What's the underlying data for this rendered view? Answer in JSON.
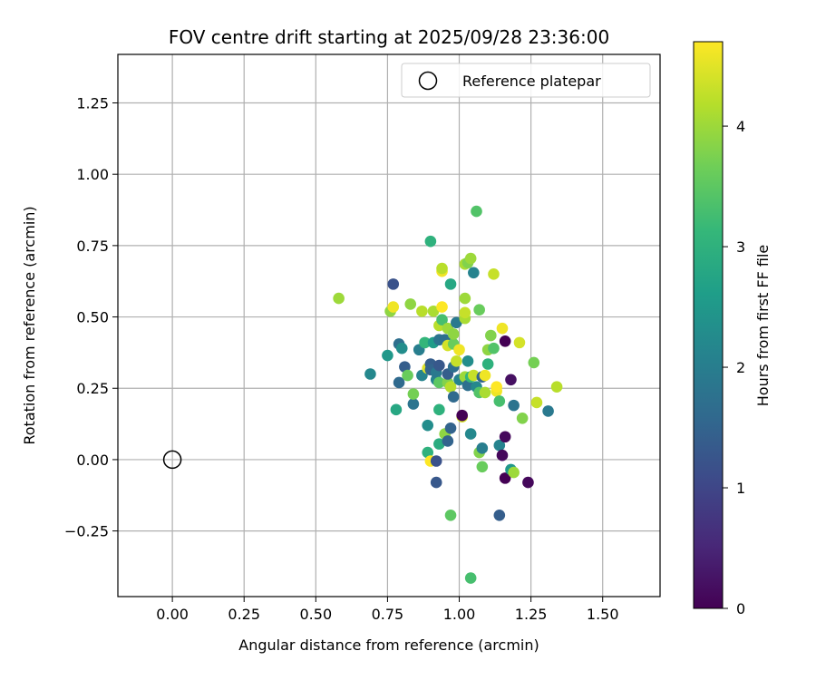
{
  "chart_data": {
    "type": "scatter",
    "title": "FOV centre drift starting at 2025/09/28 23:36:00",
    "xlabel": "Angular distance from reference (arcmin)",
    "ylabel": "Rotation from reference (arcmin)",
    "xlim": [
      -0.19,
      1.7
    ],
    "ylim": [
      -0.48,
      1.42
    ],
    "x_ticks": [
      0.0,
      0.25,
      0.5,
      0.75,
      1.0,
      1.25,
      1.5
    ],
    "x_tick_labels": [
      "0.00",
      "0.25",
      "0.50",
      "0.75",
      "1.00",
      "1.25",
      "1.50"
    ],
    "y_ticks": [
      -0.25,
      0.0,
      0.25,
      0.5,
      0.75,
      1.0,
      1.25
    ],
    "y_tick_labels": [
      "−0.25",
      "0.00",
      "0.25",
      "0.50",
      "0.75",
      "1.00",
      "1.25"
    ],
    "grid": true,
    "legend": {
      "position": "top-right",
      "entries": [
        "Reference platepar"
      ]
    },
    "reference_point": {
      "x": 0.0,
      "y": 0.0,
      "label": "Reference platepar"
    },
    "colorbar": {
      "label": "Hours from first FF file",
      "min": 0,
      "max": 4.7,
      "ticks": [
        0,
        1,
        2,
        3,
        4
      ],
      "tick_labels": [
        "0",
        "1",
        "2",
        "3",
        "4"
      ],
      "colormap": "viridis",
      "colors": [
        "#440154",
        "#482878",
        "#3e4989",
        "#31688e",
        "#26828e",
        "#1f9e89",
        "#35b779",
        "#6ece58",
        "#b5de2b",
        "#fde725"
      ]
    },
    "points": [
      {
        "x": 0.58,
        "y": 0.565,
        "h": 4.0
      },
      {
        "x": 0.69,
        "y": 0.3,
        "h": 2.2
      },
      {
        "x": 0.75,
        "y": 0.365,
        "h": 2.5
      },
      {
        "x": 0.76,
        "y": 0.52,
        "h": 3.9
      },
      {
        "x": 0.77,
        "y": 0.535,
        "h": 4.6
      },
      {
        "x": 0.77,
        "y": 0.615,
        "h": 1.2
      },
      {
        "x": 0.78,
        "y": 0.175,
        "h": 2.8
      },
      {
        "x": 0.79,
        "y": 0.405,
        "h": 1.7
      },
      {
        "x": 0.79,
        "y": 0.27,
        "h": 1.6
      },
      {
        "x": 0.8,
        "y": 0.39,
        "h": 2.3
      },
      {
        "x": 0.81,
        "y": 0.325,
        "h": 1.4
      },
      {
        "x": 0.82,
        "y": 0.295,
        "h": 3.6
      },
      {
        "x": 0.83,
        "y": 0.545,
        "h": 3.9
      },
      {
        "x": 0.84,
        "y": 0.195,
        "h": 1.8
      },
      {
        "x": 0.84,
        "y": 0.23,
        "h": 3.7
      },
      {
        "x": 0.86,
        "y": 0.385,
        "h": 2.0
      },
      {
        "x": 0.87,
        "y": 0.295,
        "h": 2.1
      },
      {
        "x": 0.87,
        "y": 0.52,
        "h": 4.2
      },
      {
        "x": 0.88,
        "y": 0.41,
        "h": 3.1
      },
      {
        "x": 0.89,
        "y": 0.12,
        "h": 2.3
      },
      {
        "x": 0.89,
        "y": 0.025,
        "h": 3.0
      },
      {
        "x": 0.89,
        "y": 0.32,
        "h": 4.5
      },
      {
        "x": 0.9,
        "y": 0.335,
        "h": 1.4
      },
      {
        "x": 0.9,
        "y": 0.315,
        "h": 1.5
      },
      {
        "x": 0.9,
        "y": 0.765,
        "h": 3.0
      },
      {
        "x": 0.9,
        "y": -0.005,
        "h": 4.7
      },
      {
        "x": 0.91,
        "y": 0.41,
        "h": 2.6
      },
      {
        "x": 0.91,
        "y": 0.52,
        "h": 4.1
      },
      {
        "x": 0.92,
        "y": 0.28,
        "h": 2.1
      },
      {
        "x": 0.92,
        "y": 0.305,
        "h": 1.9
      },
      {
        "x": 0.92,
        "y": -0.005,
        "h": 1.2
      },
      {
        "x": 0.92,
        "y": -0.08,
        "h": 1.3
      },
      {
        "x": 0.93,
        "y": 0.47,
        "h": 4.2
      },
      {
        "x": 0.93,
        "y": 0.33,
        "h": 1.3
      },
      {
        "x": 0.93,
        "y": 0.42,
        "h": 1.8
      },
      {
        "x": 0.93,
        "y": 0.27,
        "h": 3.5
      },
      {
        "x": 0.93,
        "y": 0.175,
        "h": 3.0
      },
      {
        "x": 0.93,
        "y": 0.055,
        "h": 2.9
      },
      {
        "x": 0.94,
        "y": 0.66,
        "h": 4.6
      },
      {
        "x": 0.94,
        "y": 0.535,
        "h": 4.7
      },
      {
        "x": 0.94,
        "y": 0.67,
        "h": 4.2
      },
      {
        "x": 0.94,
        "y": 0.49,
        "h": 3.3
      },
      {
        "x": 0.95,
        "y": 0.42,
        "h": 1.7
      },
      {
        "x": 0.95,
        "y": 0.09,
        "h": 3.9
      },
      {
        "x": 0.96,
        "y": 0.065,
        "h": 1.5
      },
      {
        "x": 0.96,
        "y": 0.27,
        "h": 3.8
      },
      {
        "x": 0.96,
        "y": 0.46,
        "h": 4.0
      },
      {
        "x": 0.96,
        "y": 0.4,
        "h": 4.4
      },
      {
        "x": 0.96,
        "y": 0.3,
        "h": 1.4
      },
      {
        "x": 0.97,
        "y": 0.615,
        "h": 2.8
      },
      {
        "x": 0.97,
        "y": 0.255,
        "h": 4.2
      },
      {
        "x": 0.97,
        "y": -0.195,
        "h": 3.5
      },
      {
        "x": 0.97,
        "y": 0.11,
        "h": 1.5
      },
      {
        "x": 0.98,
        "y": 0.405,
        "h": 3.6
      },
      {
        "x": 0.98,
        "y": 0.44,
        "h": 3.9
      },
      {
        "x": 0.98,
        "y": 0.22,
        "h": 1.6
      },
      {
        "x": 0.98,
        "y": 0.325,
        "h": 1.7
      },
      {
        "x": 0.99,
        "y": 0.345,
        "h": 4.3
      },
      {
        "x": 0.99,
        "y": 0.48,
        "h": 1.9
      },
      {
        "x": 1.0,
        "y": 0.28,
        "h": 2.1
      },
      {
        "x": 1.0,
        "y": 0.385,
        "h": 4.6
      },
      {
        "x": 1.01,
        "y": 0.15,
        "h": 4.4
      },
      {
        "x": 1.01,
        "y": 0.155,
        "h": 0.0
      },
      {
        "x": 1.02,
        "y": 0.29,
        "h": 4.0
      },
      {
        "x": 1.02,
        "y": 0.495,
        "h": 4.1
      },
      {
        "x": 1.02,
        "y": 0.515,
        "h": 4.3
      },
      {
        "x": 1.02,
        "y": 0.565,
        "h": 4.0
      },
      {
        "x": 1.02,
        "y": 0.685,
        "h": 4.1
      },
      {
        "x": 1.03,
        "y": 0.69,
        "h": 3.8
      },
      {
        "x": 1.03,
        "y": 0.26,
        "h": 1.7
      },
      {
        "x": 1.03,
        "y": 0.345,
        "h": 2.3
      },
      {
        "x": 1.04,
        "y": -0.415,
        "h": 3.3
      },
      {
        "x": 1.04,
        "y": 0.09,
        "h": 2.2
      },
      {
        "x": 1.04,
        "y": 0.29,
        "h": 3.1
      },
      {
        "x": 1.04,
        "y": 0.705,
        "h": 4.0
      },
      {
        "x": 1.05,
        "y": 0.655,
        "h": 2.1
      },
      {
        "x": 1.05,
        "y": 0.295,
        "h": 4.3
      },
      {
        "x": 1.06,
        "y": 0.87,
        "h": 3.4
      },
      {
        "x": 1.06,
        "y": 0.255,
        "h": 2.2
      },
      {
        "x": 1.07,
        "y": 0.525,
        "h": 3.6
      },
      {
        "x": 1.07,
        "y": 0.025,
        "h": 3.8
      },
      {
        "x": 1.07,
        "y": 0.235,
        "h": 3.4
      },
      {
        "x": 1.08,
        "y": 0.04,
        "h": 2.0
      },
      {
        "x": 1.08,
        "y": -0.025,
        "h": 3.6
      },
      {
        "x": 1.08,
        "y": 0.29,
        "h": 1.5
      },
      {
        "x": 1.09,
        "y": 0.295,
        "h": 4.6
      },
      {
        "x": 1.09,
        "y": 0.235,
        "h": 4.1
      },
      {
        "x": 1.1,
        "y": 0.335,
        "h": 3.0
      },
      {
        "x": 1.1,
        "y": 0.385,
        "h": 3.9
      },
      {
        "x": 1.11,
        "y": 0.435,
        "h": 3.8
      },
      {
        "x": 1.12,
        "y": 0.65,
        "h": 4.3
      },
      {
        "x": 1.12,
        "y": 0.39,
        "h": 3.4
      },
      {
        "x": 1.13,
        "y": 0.24,
        "h": 4.6
      },
      {
        "x": 1.13,
        "y": 0.255,
        "h": 4.7
      },
      {
        "x": 1.14,
        "y": 0.05,
        "h": 2.1
      },
      {
        "x": 1.14,
        "y": -0.195,
        "h": 1.4
      },
      {
        "x": 1.14,
        "y": 0.205,
        "h": 3.3
      },
      {
        "x": 1.15,
        "y": 0.015,
        "h": 0.1
      },
      {
        "x": 1.15,
        "y": 0.46,
        "h": 4.6
      },
      {
        "x": 1.16,
        "y": 0.415,
        "h": 0.0
      },
      {
        "x": 1.16,
        "y": 0.08,
        "h": 0.1
      },
      {
        "x": 1.16,
        "y": -0.065,
        "h": 0.0
      },
      {
        "x": 1.18,
        "y": 0.28,
        "h": 0.2
      },
      {
        "x": 1.18,
        "y": -0.035,
        "h": 2.5
      },
      {
        "x": 1.19,
        "y": -0.045,
        "h": 4.0
      },
      {
        "x": 1.19,
        "y": 0.19,
        "h": 1.8
      },
      {
        "x": 1.21,
        "y": 0.41,
        "h": 4.4
      },
      {
        "x": 1.22,
        "y": 0.145,
        "h": 3.8
      },
      {
        "x": 1.24,
        "y": -0.08,
        "h": 0.1
      },
      {
        "x": 1.26,
        "y": 0.34,
        "h": 3.7
      },
      {
        "x": 1.27,
        "y": 0.2,
        "h": 4.3
      },
      {
        "x": 1.31,
        "y": 0.17,
        "h": 1.9
      },
      {
        "x": 1.34,
        "y": 0.255,
        "h": 4.2
      }
    ]
  }
}
